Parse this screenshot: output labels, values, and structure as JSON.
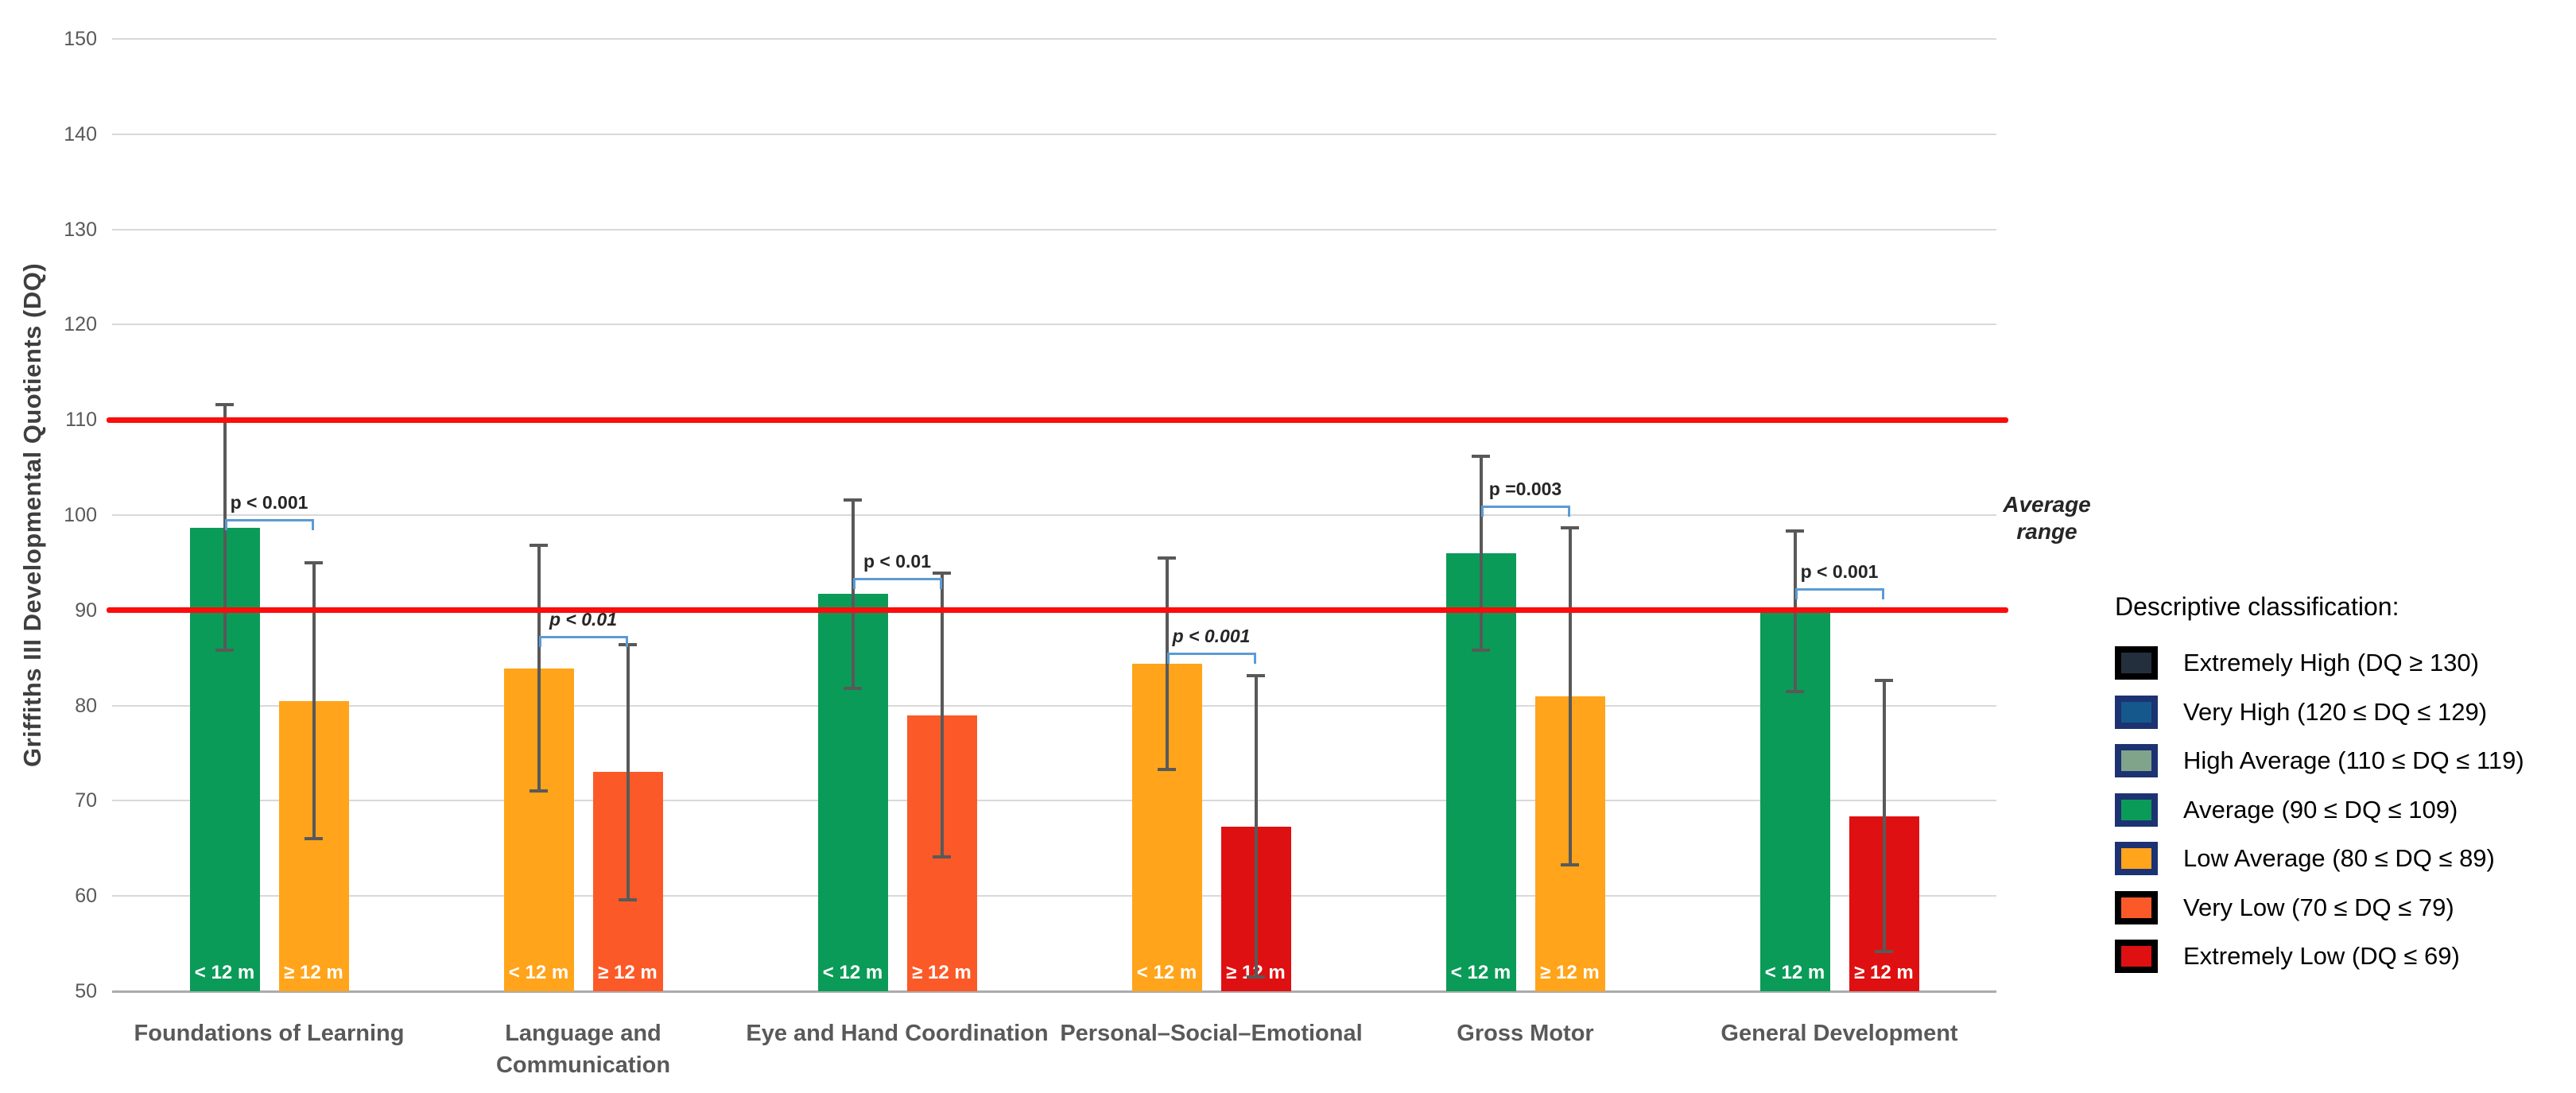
{
  "y_axis": {
    "title": "Griffiths III Developmental Quotients (DQ)"
  },
  "reference": {
    "label": "Average range",
    "values": [
      90,
      110
    ],
    "line_color": "#fb0d0c"
  },
  "colors": {
    "bracket_blue": "#5b9bd5",
    "error_bar_gray": "#595959",
    "classification_green": "#0b9b58",
    "classification_orange": "#ffa41b",
    "classification_orange_red": "#fb5a28",
    "classification_red": "#df1011"
  },
  "legend": {
    "title": "Descriptive classification:",
    "items": [
      {
        "label": "Extremely High (DQ ≥ 130)",
        "fill": "#242f3e",
        "border": "#000000"
      },
      {
        "label": "Very High (120 ≤ DQ ≤ 129)",
        "fill": "#15598c",
        "border": "#1c3272"
      },
      {
        "label": "High Average (110 ≤ DQ ≤ 119)",
        "fill": "#7fa489",
        "border": "#1c3272"
      },
      {
        "label": "Average (90 ≤ DQ ≤ 109)",
        "fill": "#0b9b58",
        "border": "#1c3272"
      },
      {
        "label": "Low Average (80 ≤ DQ ≤ 89)",
        "fill": "#ffa41b",
        "border": "#1c3272"
      },
      {
        "label": "Very Low (70 ≤ DQ ≤ 79)",
        "fill": "#fb5a28",
        "border": "#000000"
      },
      {
        "label": "Extremely Low (DQ ≤ 69)",
        "fill": "#df1011",
        "border": "#000000"
      }
    ]
  },
  "chart_data": {
    "type": "bar",
    "title": "",
    "ylabel": "Griffiths III Developmental Quotients (DQ)",
    "ylim": [
      50,
      150
    ],
    "ytick_step": 10,
    "yticks": [
      150,
      140,
      130,
      120,
      110,
      100,
      90,
      80,
      70,
      60,
      50
    ],
    "grid": true,
    "reference_lines": [
      90,
      110
    ],
    "reference_label": "Average range",
    "legend_position": "right",
    "series_names": [
      "< 12 m",
      "≥ 12 m"
    ],
    "groups": [
      {
        "category": "Foundations of Learning",
        "p_value": "p < 0.001",
        "p_italic": false,
        "bracket_dq": 99.6,
        "bars": [
          {
            "series": "< 12 m",
            "value": 98.7,
            "err_low": 85.8,
            "err_high": 111.6,
            "classification": "Average",
            "color": "#0b9b58"
          },
          {
            "series": "≥ 12 m",
            "value": 80.5,
            "err_low": 66.0,
            "err_high": 95.0,
            "classification": "Low Average",
            "color": "#ffa41b"
          }
        ]
      },
      {
        "category": "Language and\nCommunication",
        "p_value": "p < 0.01",
        "p_italic": true,
        "bracket_dq": 87.3,
        "bars": [
          {
            "series": "< 12 m",
            "value": 83.9,
            "err_low": 71.0,
            "err_high": 96.8,
            "classification": "Low Average",
            "color": "#ffa41b"
          },
          {
            "series": "≥ 12 m",
            "value": 73.0,
            "err_low": 59.6,
            "err_high": 86.4,
            "classification": "Very Low",
            "color": "#fb5a28"
          }
        ]
      },
      {
        "category": "Eye and Hand Coordination",
        "p_value": "p < 0.01",
        "p_italic": false,
        "bracket_dq": 93.4,
        "bars": [
          {
            "series": "< 12 m",
            "value": 91.7,
            "err_low": 81.8,
            "err_high": 101.6,
            "classification": "Average",
            "color": "#0b9b58"
          },
          {
            "series": "≥ 12 m",
            "value": 79.0,
            "err_low": 64.1,
            "err_high": 93.9,
            "classification": "Very Low",
            "color": "#fb5a28"
          }
        ]
      },
      {
        "category": "Personal–Social–Emotional",
        "p_value": "p < 0.001",
        "p_italic": true,
        "bracket_dq": 85.6,
        "bars": [
          {
            "series": "< 12 m",
            "value": 84.4,
            "err_low": 73.3,
            "err_high": 95.5,
            "classification": "Low Average",
            "color": "#ffa41b"
          },
          {
            "series": "≥ 12 m",
            "value": 67.3,
            "err_low": 51.5,
            "err_high": 83.1,
            "classification": "Extremely Low",
            "color": "#df1011"
          }
        ]
      },
      {
        "category": "Gross Motor",
        "p_value": "p =0.003",
        "p_italic": false,
        "bracket_dq": 101.0,
        "bars": [
          {
            "series": "< 12 m",
            "value": 96.0,
            "err_low": 85.8,
            "err_high": 106.2,
            "classification": "Average",
            "color": "#0b9b58"
          },
          {
            "series": "≥ 12 m",
            "value": 81.0,
            "err_low": 63.3,
            "err_high": 98.7,
            "classification": "Low Average",
            "color": "#ffa41b"
          }
        ]
      },
      {
        "category": "General Development",
        "p_value": "p < 0.001",
        "p_italic": false,
        "bracket_dq": 92.3,
        "bars": [
          {
            "series": "< 12 m",
            "value": 89.9,
            "err_low": 81.5,
            "err_high": 98.3,
            "classification": "Average",
            "color": "#0b9b58"
          },
          {
            "series": "≥ 12 m",
            "value": 68.4,
            "err_low": 54.2,
            "err_high": 82.6,
            "classification": "Extremely Low",
            "color": "#df1011"
          }
        ]
      }
    ]
  }
}
